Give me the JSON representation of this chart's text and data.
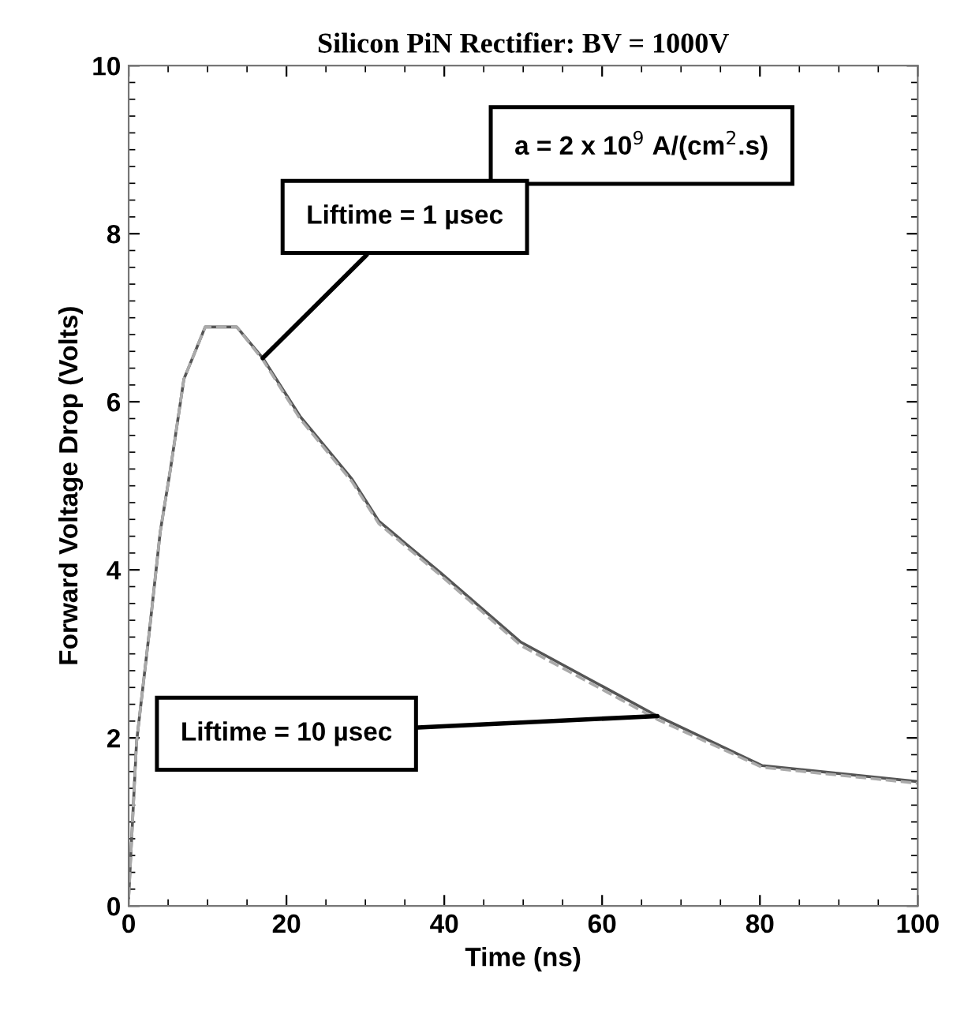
{
  "chart_data": {
    "type": "line",
    "title": "Silicon PiN Rectifier: BV = 1000V",
    "xlabel": "Time (ns)",
    "ylabel": "Forward Voltage Drop (Volts)",
    "x": [
      0,
      1.0,
      2.7,
      4.0,
      5.3,
      7.0,
      9.7,
      13.7,
      17,
      21.7,
      28.3,
      31.7,
      39.7,
      49.7,
      67,
      80.3,
      100
    ],
    "series": [
      {
        "color": "#555555",
        "line_style": "solid",
        "values": [
          0.1,
          1.95,
          3.33,
          4.45,
          5.2,
          6.27,
          6.89,
          6.89,
          6.52,
          5.83,
          5.08,
          4.58,
          3.95,
          3.14,
          2.26,
          1.67,
          1.48
        ]
      },
      {
        "color": "#aaaaaa",
        "line_style": "dashed",
        "values": [
          0.1,
          1.95,
          3.33,
          4.45,
          5.2,
          6.27,
          6.89,
          6.89,
          6.5,
          5.8,
          5.05,
          4.55,
          3.92,
          3.1,
          2.22,
          1.65,
          1.46
        ]
      }
    ],
    "annotations": [
      "a = 2 x 10$^{9}$ A/(cm$^{2}$.s)",
      {
        "text": "Liftime = 1 µsec",
        "x": 17,
        "y": 6.52
      },
      {
        "text": "Liftime = 10 µsec",
        "x": 67,
        "y": 2.26
      }
    ],
    "xlim": [
      0,
      100
    ],
    "ylim": [
      0,
      10
    ],
    "xticks": [
      0,
      20,
      40,
      60,
      80,
      100
    ],
    "yticks": [
      0,
      2,
      4,
      6,
      8,
      10
    ],
    "grid": false,
    "legend": false,
    "marker": "none"
  }
}
